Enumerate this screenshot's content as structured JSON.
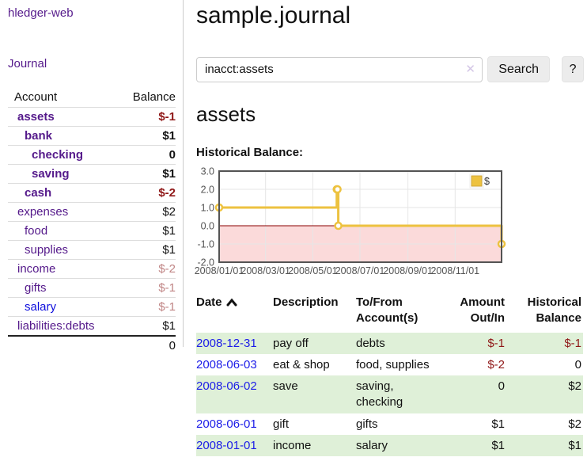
{
  "sidebar": {
    "app_title": "hledger-web",
    "nav": {
      "journal_label": "Journal"
    },
    "accounts_table": {
      "col_account": "Account",
      "col_balance": "Balance",
      "rows": [
        {
          "name": "assets",
          "depth": 1,
          "bold": true,
          "balance": "$-1",
          "balance_style": "neg"
        },
        {
          "name": "bank",
          "depth": 2,
          "bold": true,
          "balance": "$1",
          "balance_style": "pos"
        },
        {
          "name": "checking",
          "depth": 3,
          "bold": true,
          "balance": "0",
          "balance_style": "pos"
        },
        {
          "name": "saving",
          "depth": 3,
          "bold": true,
          "balance": "$1",
          "balance_style": "pos"
        },
        {
          "name": "cash",
          "depth": 2,
          "bold": true,
          "balance": "$-2",
          "balance_style": "neg"
        },
        {
          "name": "expenses",
          "depth": 1,
          "bold": false,
          "balance": "$2",
          "balance_style": "pos"
        },
        {
          "name": "food",
          "depth": 2,
          "bold": false,
          "balance": "$1",
          "balance_style": "pos"
        },
        {
          "name": "supplies",
          "depth": 2,
          "bold": false,
          "balance": "$1",
          "balance_style": "pos"
        },
        {
          "name": "income",
          "depth": 1,
          "bold": false,
          "balance": "$-2",
          "balance_style": "neg-dim"
        },
        {
          "name": "gifts",
          "depth": 2,
          "bold": false,
          "balance": "$-1",
          "balance_style": "neg-dim"
        },
        {
          "name": "salary",
          "depth": 2,
          "bold": false,
          "link_color": "blue",
          "balance": "$-1",
          "balance_style": "neg-dim"
        },
        {
          "name": "liabilities:debts",
          "depth": 1,
          "bold": false,
          "balance": "$1",
          "balance_style": "pos"
        }
      ],
      "total": "0"
    }
  },
  "header": {
    "title": "sample.journal"
  },
  "search": {
    "value": "inacct:assets",
    "clear_icon": "✕",
    "search_button": "Search",
    "help_button": "?"
  },
  "account_page": {
    "heading": "assets",
    "chart_label": "Historical Balance:"
  },
  "chart_data": {
    "type": "line",
    "title": "Historical Balance of assets",
    "step": true,
    "series": [
      {
        "name": "$",
        "color": "#edc240",
        "points": [
          [
            "2008-01-01",
            1
          ],
          [
            "2008-06-01",
            2
          ],
          [
            "2008-06-02",
            2
          ],
          [
            "2008-06-03",
            0
          ],
          [
            "2008-12-31",
            -1
          ]
        ]
      }
    ],
    "x_range": [
      "2008-01-01",
      "2008-12-31"
    ],
    "ylim": [
      -2,
      3
    ],
    "y_ticks": [
      {
        "value": 3,
        "label": "3.0"
      },
      {
        "value": 2,
        "label": "2.0"
      },
      {
        "value": 1,
        "label": "1.0"
      },
      {
        "value": 0,
        "label": "0.0"
      },
      {
        "value": -1,
        "label": "-1.0"
      },
      {
        "value": -2,
        "label": "-2.0"
      }
    ],
    "x_ticks": [
      {
        "date": "2008-01-01",
        "label": "2008/01/01"
      },
      {
        "date": "2008-03-01",
        "label": "2008/03/01"
      },
      {
        "date": "2008-05-01",
        "label": "2008/05/01"
      },
      {
        "date": "2008-07-01",
        "label": "2008/07/01"
      },
      {
        "date": "2008-09-01",
        "label": "2008/09/01"
      },
      {
        "date": "2008-11-01",
        "label": "2008/11/01"
      }
    ],
    "legend": {
      "label": "$",
      "position": "top-right"
    },
    "grid": true,
    "colors": {
      "line": "#edc240",
      "marker_fill": "#ffffff",
      "negative_region": "#fbdada",
      "zero_line": "#8b0000",
      "border": "#545454",
      "gridline": "#e6e6e6",
      "tick_text": "#545454"
    }
  },
  "register_table": {
    "columns": [
      {
        "line1": "Date",
        "line2": "",
        "sorted": "asc",
        "align": "left"
      },
      {
        "line1": "Description",
        "line2": "",
        "align": "left"
      },
      {
        "line1": "To/From",
        "line2": "Account(s)",
        "align": "left"
      },
      {
        "line1": "Amount",
        "line2": "Out/In",
        "align": "right"
      },
      {
        "line1": "Historical",
        "line2": "Balance",
        "align": "right"
      }
    ],
    "rows": [
      {
        "date": "2008-12-31",
        "description": "pay off",
        "accounts": "debts",
        "amount": "$-1",
        "balance": "$-1"
      },
      {
        "date": "2008-06-03",
        "description": "eat & shop",
        "accounts": "food, supplies",
        "amount": "$-2",
        "balance": "0"
      },
      {
        "date": "2008-06-02",
        "description": "save",
        "accounts": "saving, checking",
        "amount": "0",
        "balance": "$2"
      },
      {
        "date": "2008-06-01",
        "description": "gift",
        "accounts": "gifts",
        "amount": "$1",
        "balance": "$2"
      },
      {
        "date": "2008-01-01",
        "description": "income",
        "accounts": "salary",
        "amount": "$1",
        "balance": "$1"
      }
    ]
  }
}
